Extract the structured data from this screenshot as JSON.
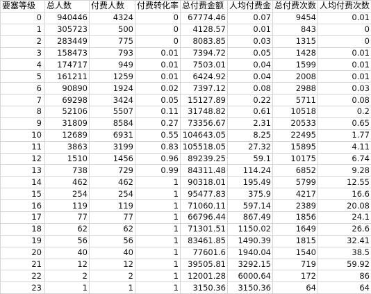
{
  "sheet": {
    "headers": [
      "要塞等级",
      "总人数",
      "付费人数",
      "付费转化率",
      "总付费金额",
      "人均付费金",
      "总付费次数",
      "人均付费次数"
    ],
    "rows": [
      [
        "0",
        "940446",
        "4324",
        "0",
        "67774.46",
        "0.07",
        "9454",
        "0.01"
      ],
      [
        "1",
        "305723",
        "500",
        "0",
        "4128.57",
        "0.01",
        "843",
        "0"
      ],
      [
        "2",
        "283449",
        "775",
        "0",
        "8083.85",
        "0.03",
        "1315",
        "0"
      ],
      [
        "3",
        "158473",
        "793",
        "0.01",
        "7394.72",
        "0.05",
        "1428",
        "0.01"
      ],
      [
        "4",
        "174717",
        "949",
        "0.01",
        "7503.01",
        "0.04",
        "1599",
        "0.01"
      ],
      [
        "5",
        "161211",
        "1259",
        "0.01",
        "6424.92",
        "0.04",
        "2008",
        "0.01"
      ],
      [
        "6",
        "90890",
        "1924",
        "0.02",
        "7397.12",
        "0.08",
        "2988",
        "0.03"
      ],
      [
        "7",
        "69298",
        "3424",
        "0.05",
        "15127.89",
        "0.22",
        "5711",
        "0.08"
      ],
      [
        "8",
        "52106",
        "5507",
        "0.11",
        "31748.82",
        "0.61",
        "10518",
        "0.2"
      ],
      [
        "9",
        "31809",
        "8584",
        "0.27",
        "73356.67",
        "2.31",
        "20533",
        "0.65"
      ],
      [
        "10",
        "12689",
        "6931",
        "0.55",
        "104643.05",
        "8.25",
        "22495",
        "1.77"
      ],
      [
        "11",
        "3863",
        "3199",
        "0.83",
        "105518.05",
        "27.32",
        "15895",
        "4.11"
      ],
      [
        "12",
        "1510",
        "1456",
        "0.96",
        "89239.25",
        "59.1",
        "10175",
        "6.74"
      ],
      [
        "13",
        "738",
        "729",
        "0.99",
        "84311.48",
        "114.24",
        "6852",
        "9.28"
      ],
      [
        "14",
        "462",
        "462",
        "1",
        "90318.01",
        "195.49",
        "5799",
        "12.55"
      ],
      [
        "15",
        "254",
        "254",
        "1",
        "95477.83",
        "375.9",
        "4217",
        "16.6"
      ],
      [
        "16",
        "119",
        "119",
        "1",
        "71060.11",
        "597.14",
        "2389",
        "20.08"
      ],
      [
        "17",
        "77",
        "77",
        "1",
        "66796.44",
        "867.49",
        "1856",
        "24.1"
      ],
      [
        "18",
        "62",
        "62",
        "1",
        "71301.51",
        "1150.02",
        "1649",
        "26.6"
      ],
      [
        "19",
        "56",
        "56",
        "1",
        "83461.85",
        "1490.39",
        "1815",
        "32.41"
      ],
      [
        "20",
        "40",
        "40",
        "1",
        "77601.6",
        "1940.04",
        "1540",
        "38.5"
      ],
      [
        "21",
        "12",
        "12",
        "1",
        "39505.81",
        "3292.15",
        "719",
        "59.92"
      ],
      [
        "22",
        "2",
        "2",
        "1",
        "12001.28",
        "6000.64",
        "172",
        "86"
      ],
      [
        "23",
        "1",
        "1",
        "1",
        "3150.36",
        "3150.36",
        "64",
        "64"
      ]
    ]
  }
}
